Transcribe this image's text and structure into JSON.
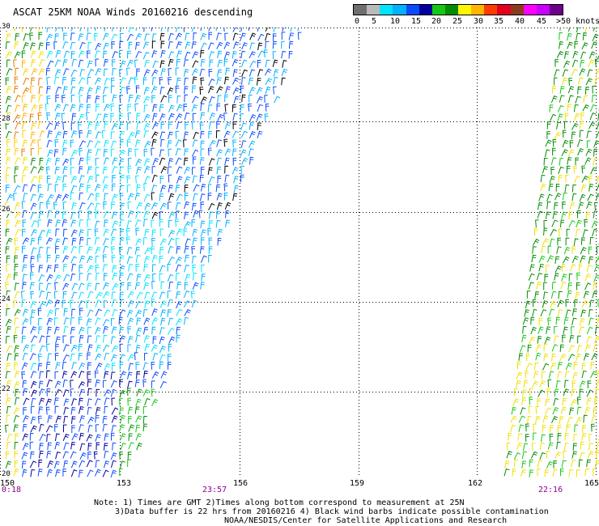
{
  "title": "ASCAT 25KM NOAA Winds 20160216 descending",
  "colorbar": {
    "colors": [
      "#6e6e6e",
      "#b9b9b9",
      "#00e3ff",
      "#00b1ff",
      "#0a4bff",
      "#00009b",
      "#14c814",
      "#008c00",
      "#fff700",
      "#ffb400",
      "#ff3c00",
      "#e1001e",
      "#8c3c1e",
      "#ff00ff",
      "#c800ff",
      "#6e008c"
    ],
    "labels": [
      "0",
      "5",
      "10",
      "15",
      "20",
      "25",
      "30",
      "35",
      "40",
      "45",
      ">50 knots"
    ]
  },
  "map": {
    "lat_labels": [
      "30",
      "28",
      "26",
      "24",
      "22",
      "20"
    ],
    "lon_labels": [
      "150",
      "153",
      "156",
      "159",
      "162",
      "165"
    ],
    "times": [
      "0:18",
      "23:57",
      "22:16"
    ]
  },
  "notes": [
    "Note: 1) Times are GMT 2)Times along bottom correspond to measurement at 25N",
    "3)Data buffer is 22 hrs from 20160216 4) Black wind barbs indicate possible contamination",
    "NOAA/NESDIS/Center for Satellite Applications and Research"
  ]
}
